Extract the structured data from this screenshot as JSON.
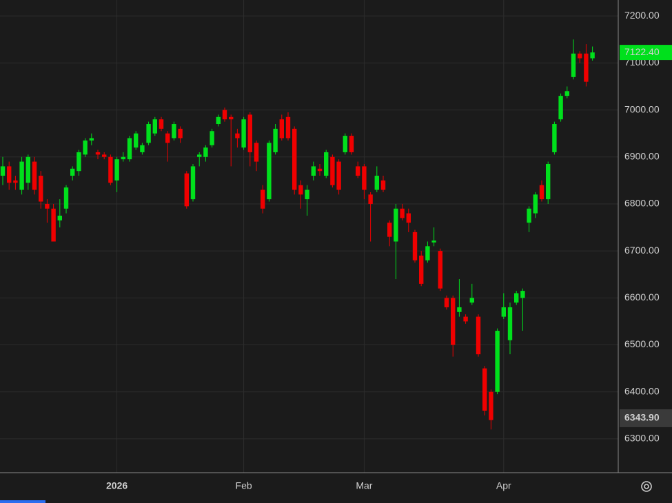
{
  "chart_data": {
    "type": "candlestick",
    "categories": [
      null,
      null,
      null,
      null,
      null,
      null,
      null,
      null,
      null,
      null,
      null,
      null,
      null,
      null,
      null,
      null,
      null,
      null,
      "2026",
      null,
      null,
      null,
      null,
      null,
      null,
      null,
      null,
      null,
      null,
      null,
      null,
      null,
      null,
      null,
      null,
      null,
      null,
      null,
      "Feb",
      null,
      null,
      null,
      null,
      null,
      null,
      null,
      null,
      null,
      null,
      null,
      null,
      null,
      null,
      null,
      null,
      null,
      null,
      "Mar",
      null,
      null,
      null,
      null,
      null,
      null,
      null,
      null,
      null,
      null,
      null,
      null,
      null,
      null,
      null,
      null,
      null,
      null,
      null,
      null,
      null,
      "Apr",
      null,
      null,
      null,
      null,
      null,
      null,
      null,
      null,
      null,
      null,
      null,
      null,
      null,
      null
    ],
    "open": [
      6860,
      6880,
      6850,
      6830,
      6845,
      6890,
      6860,
      6800,
      6790,
      6765,
      6790,
      6860,
      6870,
      6905,
      6935,
      6910,
      6905,
      6900,
      6850,
      6895,
      6895,
      6920,
      6910,
      6930,
      6950,
      6980,
      6950,
      6940,
      6960,
      6865,
      6810,
      6900,
      6900,
      6925,
      6970,
      7000,
      6985,
      6950,
      6920,
      6990,
      6930,
      6830,
      6810,
      6910,
      6980,
      6985,
      6960,
      6840,
      6810,
      6860,
      6875,
      6860,
      6900,
      6890,
      6910,
      6945,
      6880,
      6880,
      6820,
      6830,
      6850,
      6760,
      6720,
      6790,
      6780,
      6740,
      6690,
      6680,
      6718,
      6700,
      6600,
      6600,
      6570,
      6560,
      6590,
      6560,
      6450,
      6400,
      6400,
      6560,
      6510,
      6590,
      6600,
      6760,
      6780,
      6840,
      6810,
      6910,
      6980,
      7030,
      7070,
      7120,
      7120,
      7110
    ],
    "high": [
      6900,
      6890,
      6860,
      6900,
      6905,
      6900,
      6870,
      6810,
      6800,
      6810,
      6840,
      6880,
      6915,
      6940,
      6950,
      6915,
      6910,
      6905,
      6900,
      6910,
      6945,
      6955,
      6930,
      6975,
      6985,
      6985,
      6955,
      6975,
      6965,
      6870,
      6885,
      6910,
      6925,
      6960,
      6990,
      7005,
      6990,
      6960,
      6985,
      6995,
      6935,
      6840,
      6935,
      6970,
      6990,
      6995,
      6965,
      6850,
      6840,
      6890,
      6885,
      6915,
      6905,
      6895,
      6950,
      6950,
      6890,
      6885,
      6825,
      6880,
      6860,
      6765,
      6800,
      6800,
      6790,
      6745,
      6700,
      6720,
      6750,
      6705,
      6605,
      6605,
      6640,
      6565,
      6630,
      6565,
      6455,
      6405,
      6535,
      6610,
      6590,
      6615,
      6620,
      6795,
      6825,
      6850,
      6890,
      6975,
      7035,
      7050,
      7150,
      7125,
      7140,
      7135
    ],
    "low": [
      6840,
      6830,
      6830,
      6820,
      6830,
      6820,
      6790,
      6760,
      6720,
      6750,
      6780,
      6850,
      6860,
      6900,
      6925,
      6895,
      6895,
      6840,
      6825,
      6890,
      6890,
      6915,
      6905,
      6925,
      6945,
      6955,
      6890,
      6935,
      6930,
      6790,
      6805,
      6880,
      6890,
      6920,
      6965,
      6975,
      6880,
      6920,
      6915,
      6880,
      6870,
      6780,
      6805,
      6905,
      6935,
      6935,
      6820,
      6790,
      6775,
      6850,
      6860,
      6855,
      6835,
      6820,
      6905,
      6905,
      6855,
      6810,
      6720,
      6825,
      6825,
      6710,
      6640,
      6765,
      6740,
      6675,
      6625,
      6675,
      6710,
      6615,
      6575,
      6475,
      6560,
      6545,
      6585,
      6475,
      6350,
      6320,
      6395,
      6555,
      6480,
      6585,
      6530,
      6740,
      6770,
      6805,
      6800,
      6905,
      6975,
      7025,
      7065,
      7100,
      7050,
      7105
    ],
    "close": [
      6880,
      6845,
      6845,
      6890,
      6900,
      6830,
      6805,
      6790,
      6720,
      6775,
      6835,
      6875,
      6910,
      6935,
      6940,
      6905,
      6900,
      6845,
      6895,
      6900,
      6940,
      6950,
      6925,
      6970,
      6980,
      6960,
      6930,
      6970,
      6940,
      6795,
      6880,
      6905,
      6920,
      6955,
      6985,
      6980,
      6980,
      6940,
      6980,
      6910,
      6890,
      6790,
      6930,
      6960,
      6940,
      6940,
      6830,
      6820,
      6830,
      6880,
      6870,
      6910,
      6840,
      6830,
      6945,
      6910,
      6860,
      6830,
      6800,
      6860,
      6830,
      6730,
      6790,
      6770,
      6760,
      6680,
      6630,
      6710,
      6722,
      6620,
      6580,
      6500,
      6580,
      6550,
      6600,
      6480,
      6360,
      6340,
      6530,
      6580,
      6580,
      6610,
      6615,
      6790,
      6820,
      6810,
      6885,
      6970,
      7030,
      7040,
      7120,
      7110,
      7060,
      7122.4
    ],
    "up_color": "#00e01c",
    "down_color": "#f00000",
    "ylim": [
      6228,
      7234
    ],
    "yticks": [
      {
        "value": 6300,
        "label": "6300.00"
      },
      {
        "value": 6400,
        "label": "6400.00"
      },
      {
        "value": 6500,
        "label": "6500.00"
      },
      {
        "value": 6600,
        "label": "6600.00"
      },
      {
        "value": 6700,
        "label": "6700.00"
      },
      {
        "value": 6800,
        "label": "6800.00"
      },
      {
        "value": 6900,
        "label": "6900.00"
      },
      {
        "value": 7000,
        "label": "7000.00"
      },
      {
        "value": 7100,
        "label": "7100.00"
      },
      {
        "value": 7200,
        "label": "7200.00"
      }
    ],
    "grid": true,
    "last_price": {
      "value": 7122.4,
      "label": "7122.40"
    },
    "marker_price": {
      "value": 6343.9,
      "label": "6343.90"
    }
  }
}
